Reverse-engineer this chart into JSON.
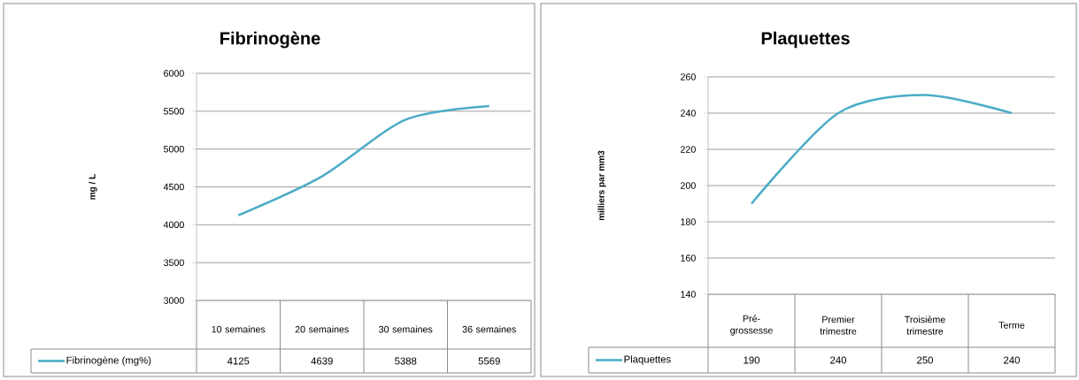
{
  "chart_data": [
    {
      "type": "line",
      "title": "Fibrinogène",
      "ylabel": "mg / L",
      "categories": [
        "10 semaines",
        "20 semaines",
        "30 semaines",
        "36 semaines"
      ],
      "series": [
        {
          "name": "Fibrinogène (mg%)",
          "color": "#4bacc6",
          "values": [
            4125,
            4639,
            5388,
            5569
          ]
        }
      ],
      "ylim": [
        3000,
        6000
      ],
      "yticks": [
        3000,
        3500,
        4000,
        4500,
        5000,
        5500,
        6000
      ],
      "grid": "y",
      "data_labels": true,
      "legend": "bottom"
    },
    {
      "type": "line",
      "title": "Plaquettes",
      "ylabel": "milliers par mm3",
      "categories": [
        "Pré-grossesse",
        "Premier trimestre",
        "Troisième trimestre",
        "Terme"
      ],
      "series": [
        {
          "name": "Plaquettes",
          "color": "#4bacc6",
          "values": [
            190,
            240,
            250,
            240
          ]
        }
      ],
      "ylim": [
        140,
        260
      ],
      "yticks": [
        140,
        160,
        180,
        200,
        220,
        240,
        260
      ],
      "grid": "y",
      "data_labels": true,
      "legend": "bottom"
    }
  ]
}
